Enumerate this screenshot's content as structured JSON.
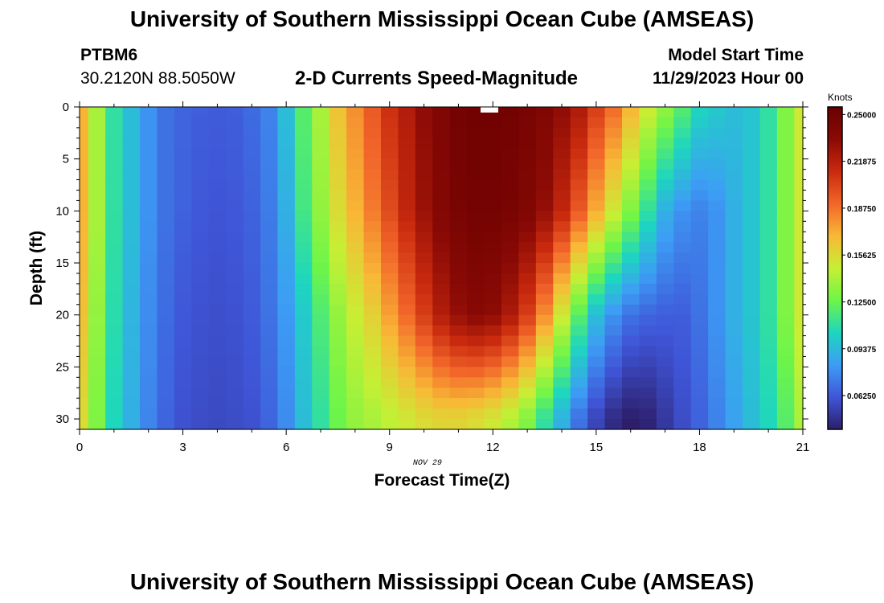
{
  "header": {
    "title": "University of Southern Mississippi Ocean Cube (AMSEAS)",
    "station_id": "PTBM6",
    "coordinates": "30.2120N  88.5050W",
    "chart_title": "2-D Currents Speed-Magnitude",
    "model_start_label": "Model Start Time",
    "model_start_value": "11/29/2023 Hour 00"
  },
  "footer": {
    "title": "University of Southern Mississippi Ocean Cube (AMSEAS)"
  },
  "colors": {
    "background": "#ffffff",
    "text": "#000000"
  },
  "chart_data": {
    "type": "heatmap",
    "title": "2-D Currents Speed-Magnitude",
    "xlabel": "Forecast Time(Z)",
    "ylabel": "Depth (ft)",
    "date_label": "NOV 29",
    "xlim": [
      0,
      21
    ],
    "ylim": [
      0,
      31
    ],
    "y_inverted": true,
    "x_ticks": [
      "0",
      "3",
      "6",
      "9",
      "12",
      "15",
      "18",
      "21"
    ],
    "y_ticks": [
      "0",
      "5",
      "10",
      "15",
      "20",
      "25",
      "30"
    ],
    "time_hours": [
      0,
      0.5,
      1,
      1.5,
      2,
      2.5,
      3,
      3.5,
      4,
      4.5,
      5,
      5.5,
      6,
      6.5,
      7,
      7.5,
      8,
      8.5,
      9,
      9.5,
      10,
      10.5,
      11,
      11.5,
      12,
      12.5,
      13,
      13.5,
      14,
      14.5,
      15,
      15.5,
      16,
      16.5,
      17,
      17.5,
      18,
      18.5,
      19,
      19.5,
      20,
      20.5,
      21
    ],
    "depth_knots": {
      "0": [
        0.17,
        0.14,
        0.11,
        0.095,
        0.08,
        0.07,
        0.066,
        0.064,
        0.063,
        0.064,
        0.068,
        0.075,
        0.095,
        0.12,
        0.14,
        0.165,
        0.18,
        0.195,
        0.21,
        0.22,
        0.232,
        0.24,
        0.248,
        0.25,
        0.25,
        0.249,
        0.245,
        0.24,
        0.232,
        0.222,
        0.205,
        0.19,
        0.17,
        0.15,
        0.135,
        0.12,
        0.105,
        0.1,
        0.095,
        0.098,
        0.11,
        0.13,
        0.15
      ],
      "10": [
        0.17,
        0.14,
        0.11,
        0.095,
        0.08,
        0.07,
        0.065,
        0.062,
        0.061,
        0.062,
        0.065,
        0.073,
        0.09,
        0.115,
        0.135,
        0.155,
        0.17,
        0.185,
        0.2,
        0.215,
        0.228,
        0.238,
        0.245,
        0.248,
        0.248,
        0.245,
        0.24,
        0.23,
        0.215,
        0.195,
        0.172,
        0.15,
        0.13,
        0.11,
        0.09,
        0.08,
        0.075,
        0.08,
        0.09,
        0.098,
        0.11,
        0.13,
        0.15
      ],
      "20": [
        0.165,
        0.135,
        0.108,
        0.092,
        0.078,
        0.068,
        0.062,
        0.06,
        0.059,
        0.06,
        0.063,
        0.07,
        0.082,
        0.1,
        0.118,
        0.135,
        0.148,
        0.16,
        0.175,
        0.19,
        0.205,
        0.22,
        0.23,
        0.235,
        0.232,
        0.222,
        0.205,
        0.18,
        0.15,
        0.12,
        0.095,
        0.08,
        0.07,
        0.066,
        0.064,
        0.064,
        0.07,
        0.08,
        0.09,
        0.098,
        0.11,
        0.13,
        0.15
      ],
      "30": [
        0.155,
        0.13,
        0.105,
        0.09,
        0.076,
        0.066,
        0.06,
        0.058,
        0.057,
        0.058,
        0.06,
        0.066,
        0.078,
        0.095,
        0.11,
        0.125,
        0.135,
        0.14,
        0.145,
        0.15,
        0.155,
        0.158,
        0.158,
        0.155,
        0.15,
        0.142,
        0.13,
        0.11,
        0.09,
        0.07,
        0.055,
        0.045,
        0.04,
        0.042,
        0.05,
        0.058,
        0.065,
        0.075,
        0.085,
        0.095,
        0.105,
        0.12,
        0.14
      ]
    },
    "colorbar": {
      "label": "Knots",
      "ticks": [
        "0.06250",
        "0.09375",
        "0.12500",
        "0.15625",
        "0.18750",
        "0.21875",
        "0.25000"
      ],
      "range": [
        0.04,
        0.255
      ],
      "palette": [
        "#2d1e6b",
        "#3f56d8",
        "#3d9df5",
        "#1dd6bf",
        "#6ef548",
        "#c7ef34",
        "#f8b836",
        "#f2662a",
        "#c92a0e",
        "#8a0a05",
        "#6a0000"
      ]
    }
  }
}
